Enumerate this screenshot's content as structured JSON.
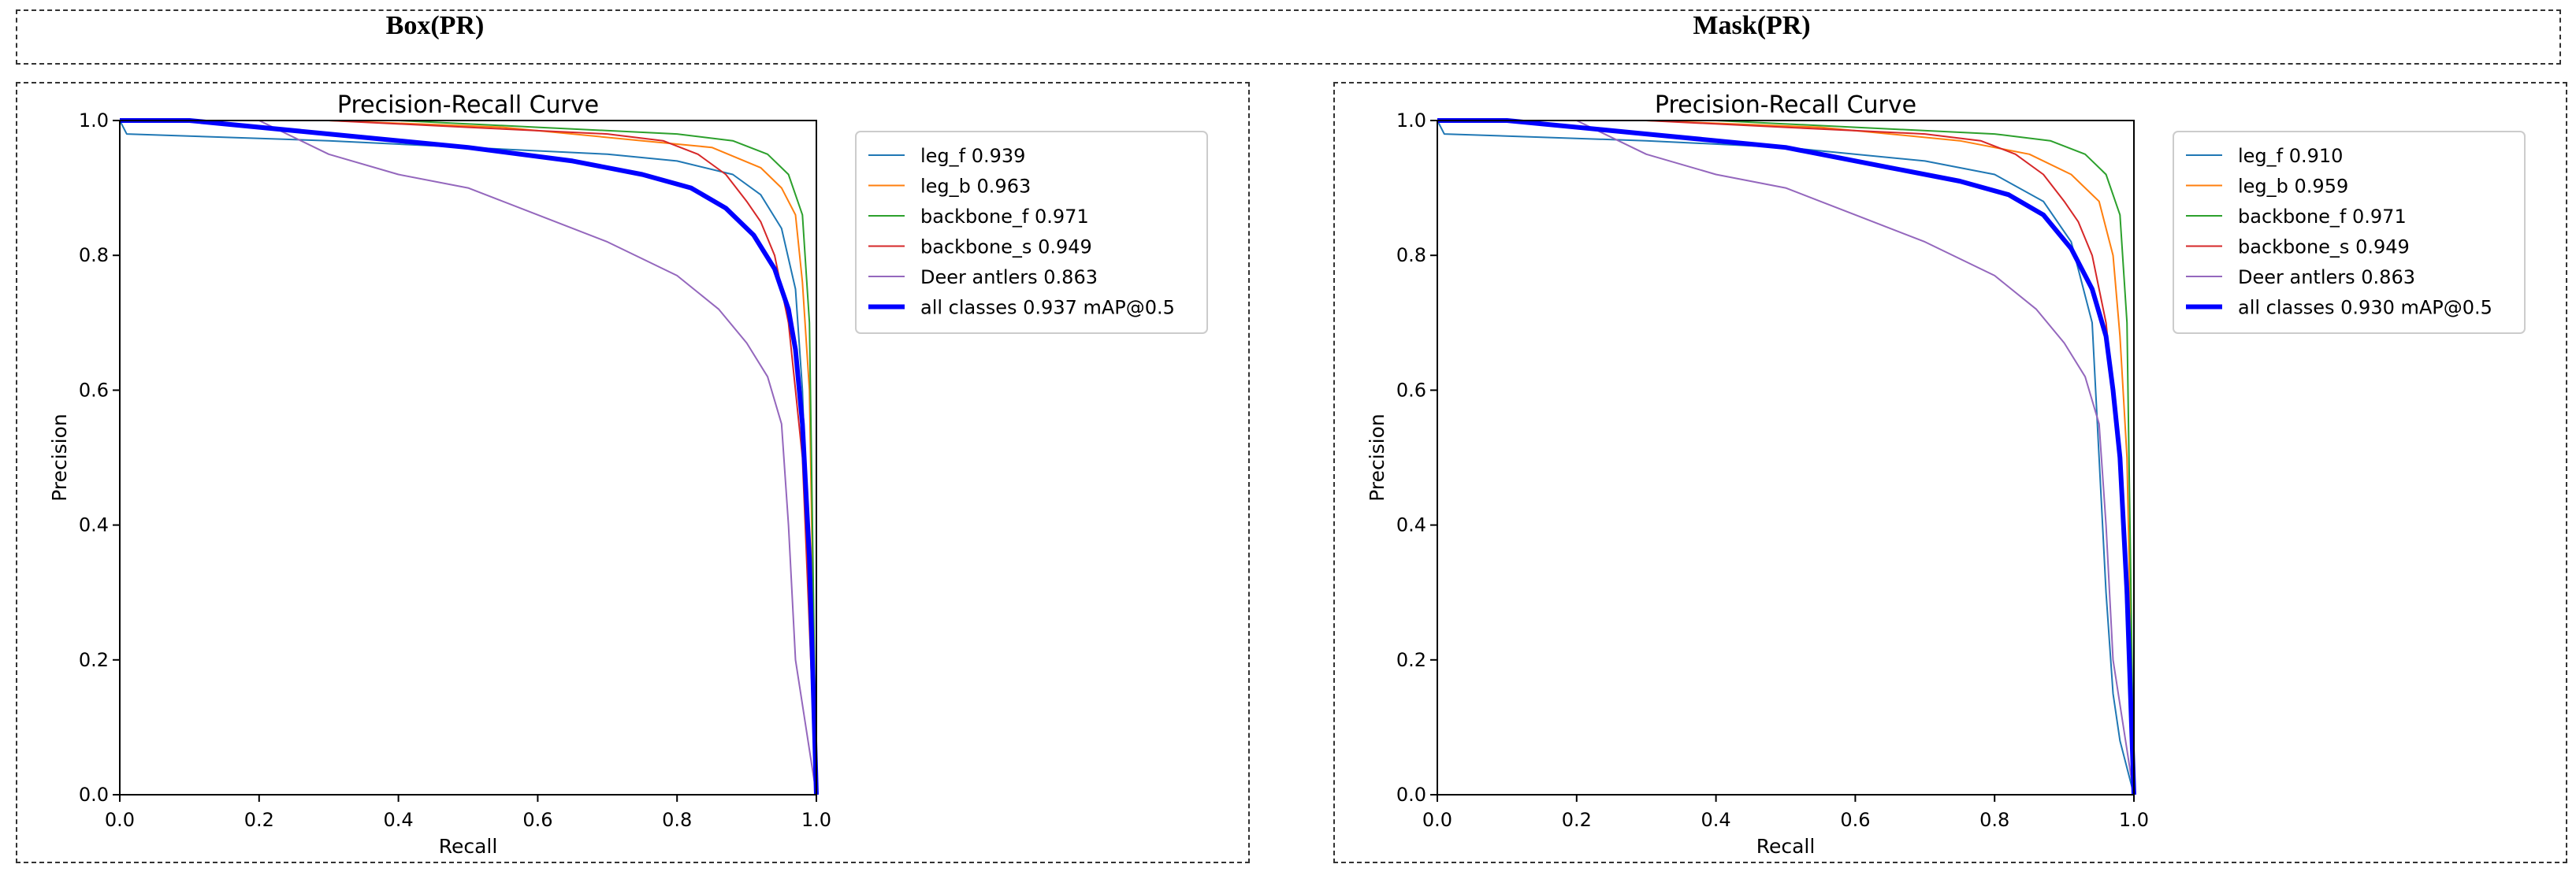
{
  "headers": {
    "left": "Box(PR)",
    "right": "Mask(PR)"
  },
  "chart_data": [
    {
      "type": "line",
      "title": "Precision-Recall Curve",
      "xlabel": "Recall",
      "ylabel": "Precision",
      "xlim": [
        0,
        1
      ],
      "ylim": [
        0,
        1
      ],
      "xticks": [
        "0.0",
        "0.2",
        "0.4",
        "0.6",
        "0.8",
        "1.0"
      ],
      "yticks": [
        "0.0",
        "0.2",
        "0.4",
        "0.6",
        "0.8",
        "1.0"
      ],
      "grid": false,
      "legend_position": "top-right outside",
      "series": [
        {
          "name": "leg_f",
          "label": "leg_f 0.939",
          "color": "#1f77b4",
          "lw": 2,
          "x": [
            0,
            0.01,
            0.3,
            0.5,
            0.7,
            0.8,
            0.88,
            0.92,
            0.95,
            0.97,
            0.98,
            0.99,
            1.0
          ],
          "y": [
            1.0,
            0.98,
            0.97,
            0.96,
            0.95,
            0.94,
            0.92,
            0.89,
            0.84,
            0.75,
            0.6,
            0.3,
            0.0
          ]
        },
        {
          "name": "leg_b",
          "label": "leg_b 0.963",
          "color": "#ff7f0e",
          "lw": 2,
          "x": [
            0,
            0.3,
            0.55,
            0.75,
            0.85,
            0.92,
            0.95,
            0.97,
            0.98,
            0.99,
            1.0
          ],
          "y": [
            1.0,
            1.0,
            0.99,
            0.97,
            0.96,
            0.93,
            0.9,
            0.86,
            0.76,
            0.6,
            0.0
          ]
        },
        {
          "name": "backbone_f",
          "label": "backbone_f 0.971",
          "color": "#2ca02c",
          "lw": 2,
          "x": [
            0,
            0.4,
            0.6,
            0.8,
            0.88,
            0.93,
            0.96,
            0.98,
            0.99,
            1.0
          ],
          "y": [
            1.0,
            1.0,
            0.99,
            0.98,
            0.97,
            0.95,
            0.92,
            0.86,
            0.7,
            0.0
          ]
        },
        {
          "name": "backbone_s",
          "label": "backbone_s 0.949",
          "color": "#d62728",
          "lw": 2,
          "x": [
            0,
            0.3,
            0.5,
            0.7,
            0.78,
            0.83,
            0.87,
            0.9,
            0.92,
            0.94,
            0.96,
            0.97,
            0.98,
            1.0
          ],
          "y": [
            1.0,
            1.0,
            0.99,
            0.98,
            0.97,
            0.95,
            0.92,
            0.88,
            0.85,
            0.8,
            0.7,
            0.6,
            0.5,
            0.0
          ]
        },
        {
          "name": "Deer antlers",
          "label": "Deer antlers 0.863",
          "color": "#9467bd",
          "lw": 2,
          "x": [
            0,
            0.2,
            0.3,
            0.4,
            0.5,
            0.6,
            0.7,
            0.8,
            0.86,
            0.9,
            0.93,
            0.95,
            0.96,
            0.97,
            1.0
          ],
          "y": [
            1.0,
            1.0,
            0.95,
            0.92,
            0.9,
            0.86,
            0.82,
            0.77,
            0.72,
            0.67,
            0.62,
            0.55,
            0.4,
            0.2,
            0.0
          ]
        },
        {
          "name": "all classes",
          "label": "all classes 0.937 mAP@0.5",
          "color": "#0000ff",
          "lw": 6,
          "x": [
            0,
            0.1,
            0.3,
            0.5,
            0.65,
            0.75,
            0.82,
            0.87,
            0.91,
            0.94,
            0.96,
            0.97,
            0.98,
            0.99,
            1.0
          ],
          "y": [
            1.0,
            1.0,
            0.98,
            0.96,
            0.94,
            0.92,
            0.9,
            0.87,
            0.83,
            0.78,
            0.72,
            0.66,
            0.55,
            0.35,
            0.0
          ]
        }
      ]
    },
    {
      "type": "line",
      "title": "Precision-Recall Curve",
      "xlabel": "Recall",
      "ylabel": "Precision",
      "xlim": [
        0,
        1
      ],
      "ylim": [
        0,
        1
      ],
      "xticks": [
        "0.0",
        "0.2",
        "0.4",
        "0.6",
        "0.8",
        "1.0"
      ],
      "yticks": [
        "0.0",
        "0.2",
        "0.4",
        "0.6",
        "0.8",
        "1.0"
      ],
      "grid": false,
      "legend_position": "top-right outside",
      "series": [
        {
          "name": "leg_f",
          "label": "leg_f 0.910",
          "color": "#1f77b4",
          "lw": 2,
          "x": [
            0,
            0.01,
            0.3,
            0.5,
            0.7,
            0.8,
            0.87,
            0.91,
            0.94,
            0.95,
            0.96,
            0.97,
            0.98,
            1.0
          ],
          "y": [
            1.0,
            0.98,
            0.97,
            0.96,
            0.94,
            0.92,
            0.88,
            0.82,
            0.7,
            0.5,
            0.3,
            0.15,
            0.08,
            0.0
          ]
        },
        {
          "name": "leg_b",
          "label": "leg_b 0.959",
          "color": "#ff7f0e",
          "lw": 2,
          "x": [
            0,
            0.3,
            0.55,
            0.75,
            0.85,
            0.91,
            0.95,
            0.97,
            0.98,
            0.99,
            1.0
          ],
          "y": [
            1.0,
            1.0,
            0.99,
            0.97,
            0.95,
            0.92,
            0.88,
            0.8,
            0.68,
            0.5,
            0.0
          ]
        },
        {
          "name": "backbone_f",
          "label": "backbone_f 0.971",
          "color": "#2ca02c",
          "lw": 2,
          "x": [
            0,
            0.4,
            0.6,
            0.8,
            0.88,
            0.93,
            0.96,
            0.98,
            0.99,
            1.0
          ],
          "y": [
            1.0,
            1.0,
            0.99,
            0.98,
            0.97,
            0.95,
            0.92,
            0.86,
            0.7,
            0.0
          ]
        },
        {
          "name": "backbone_s",
          "label": "backbone_s 0.949",
          "color": "#d62728",
          "lw": 2,
          "x": [
            0,
            0.3,
            0.5,
            0.7,
            0.78,
            0.83,
            0.87,
            0.9,
            0.92,
            0.94,
            0.96,
            0.97,
            0.98,
            1.0
          ],
          "y": [
            1.0,
            1.0,
            0.99,
            0.98,
            0.97,
            0.95,
            0.92,
            0.88,
            0.85,
            0.8,
            0.7,
            0.6,
            0.5,
            0.0
          ]
        },
        {
          "name": "Deer antlers",
          "label": "Deer antlers 0.863",
          "color": "#9467bd",
          "lw": 2,
          "x": [
            0,
            0.2,
            0.3,
            0.4,
            0.5,
            0.6,
            0.7,
            0.8,
            0.86,
            0.9,
            0.93,
            0.95,
            0.96,
            0.97,
            1.0
          ],
          "y": [
            1.0,
            1.0,
            0.95,
            0.92,
            0.9,
            0.86,
            0.82,
            0.77,
            0.72,
            0.67,
            0.62,
            0.55,
            0.4,
            0.2,
            0.0
          ]
        },
        {
          "name": "all classes",
          "label": "all classes 0.930 mAP@0.5",
          "color": "#0000ff",
          "lw": 6,
          "x": [
            0,
            0.1,
            0.3,
            0.5,
            0.65,
            0.75,
            0.82,
            0.87,
            0.91,
            0.94,
            0.96,
            0.97,
            0.98,
            0.99,
            1.0
          ],
          "y": [
            1.0,
            1.0,
            0.98,
            0.96,
            0.93,
            0.91,
            0.89,
            0.86,
            0.81,
            0.75,
            0.68,
            0.6,
            0.5,
            0.3,
            0.0
          ]
        }
      ]
    }
  ]
}
